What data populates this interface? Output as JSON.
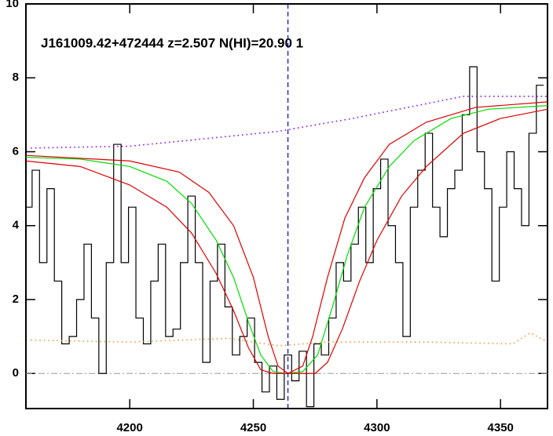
{
  "chart_data": {
    "type": "line",
    "title": "J161009.42+472444 z=2.507 N(HI)=20.90 1",
    "xlim": [
      4158,
      4369
    ],
    "ylim": [
      -0.95,
      10
    ],
    "xticks": [
      4200,
      4250,
      4300,
      4350
    ],
    "yticks": [
      0,
      2,
      4,
      6,
      8,
      10
    ],
    "vline": {
      "x": 4264,
      "color": "#0000cc"
    },
    "hline": {
      "y": 0,
      "color": "#999999"
    },
    "series": [
      {
        "style": "steps",
        "color": "#000000",
        "x": [
          4159,
          4162,
          4165,
          4168,
          4171,
          4174,
          4177,
          4180,
          4183,
          4186,
          4189,
          4192,
          4195,
          4198,
          4201,
          4204,
          4207,
          4210,
          4213,
          4216,
          4219,
          4222,
          4225,
          4228,
          4231,
          4234,
          4237,
          4240,
          4243,
          4246,
          4249,
          4252,
          4255,
          4258,
          4261,
          4264,
          4267,
          4270,
          4273,
          4276,
          4279,
          4282,
          4285,
          4288,
          4291,
          4294,
          4297,
          4300,
          4303,
          4306,
          4309,
          4312,
          4315,
          4318,
          4321,
          4324,
          4327,
          4330,
          4333,
          4336,
          4339,
          4342,
          4345,
          4348,
          4351,
          4354,
          4357,
          4360,
          4363,
          4366
        ],
        "values": [
          4.5,
          5.5,
          3.0,
          5.0,
          2.5,
          0.8,
          1.0,
          2.0,
          3.5,
          1.5,
          0.0,
          3.0,
          6.2,
          3.0,
          4.5,
          1.5,
          0.8,
          2.5,
          3.5,
          1.0,
          1.2,
          3.0,
          4.8,
          3.0,
          0.3,
          2.5,
          3.5,
          1.8,
          0.5,
          1.0,
          1.5,
          0.3,
          -0.5,
          0.2,
          -0.7,
          0.5,
          -0.2,
          0.6,
          -0.9,
          0.8,
          0.5,
          1.5,
          3.0,
          2.5,
          3.5,
          4.5,
          3.0,
          5.0,
          5.8,
          4.0,
          3.0,
          1.0,
          4.5,
          5.5,
          6.5,
          4.5,
          3.7,
          5.0,
          5.5,
          7.0,
          8.3,
          6.0,
          5.0,
          2.5,
          4.5,
          6.0,
          5.0,
          4.0,
          6.5,
          7.8
        ]
      },
      {
        "style": "line",
        "color": "#00dd00",
        "x": [
          4158,
          4180,
          4200,
          4215,
          4225,
          4235,
          4242,
          4248,
          4253,
          4258,
          4263,
          4270,
          4276,
          4282,
          4288,
          4295,
          4305,
          4315,
          4330,
          4345,
          4369
        ],
        "values": [
          5.85,
          5.8,
          5.6,
          5.2,
          4.6,
          3.6,
          2.6,
          1.4,
          0.5,
          0.05,
          0,
          0.05,
          0.5,
          1.8,
          3.2,
          4.5,
          5.6,
          6.3,
          6.9,
          7.15,
          7.25
        ]
      },
      {
        "style": "line",
        "color": "#dd0000",
        "x": [
          4158,
          4200,
          4220,
          4232,
          4242,
          4250,
          4256,
          4260,
          4264,
          4270,
          4274,
          4280,
          4287,
          4295,
          4305,
          4320,
          4340,
          4369
        ],
        "values": [
          5.9,
          5.75,
          5.45,
          4.9,
          4.0,
          2.6,
          1.0,
          0.2,
          0,
          0.2,
          1.0,
          2.6,
          4.2,
          5.3,
          6.2,
          6.8,
          7.2,
          7.35
        ]
      },
      {
        "style": "line",
        "color": "#dd0000",
        "x": [
          4158,
          4180,
          4200,
          4215,
          4225,
          4235,
          4242,
          4248,
          4253,
          4258,
          4275,
          4280,
          4286,
          4293,
          4300,
          4310,
          4320,
          4335,
          4350,
          4369
        ],
        "values": [
          5.75,
          5.6,
          5.1,
          4.5,
          3.8,
          2.7,
          1.7,
          0.7,
          0.1,
          0,
          0,
          0.3,
          1.2,
          2.5,
          3.6,
          4.8,
          5.6,
          6.5,
          6.9,
          7.15
        ]
      },
      {
        "style": "dotted",
        "color": "#8800ff",
        "x": [
          4160,
          4200,
          4230,
          4260,
          4290,
          4320,
          4335,
          4369
        ],
        "values": [
          6.1,
          6.15,
          6.35,
          6.55,
          6.9,
          7.3,
          7.5,
          7.5
        ]
      },
      {
        "style": "dotted",
        "color": "#ee9933",
        "x": [
          4160,
          4200,
          4240,
          4260,
          4280,
          4320,
          4355,
          4362,
          4369
        ],
        "values": [
          0.9,
          0.85,
          0.95,
          0.75,
          0.85,
          0.85,
          0.8,
          1.1,
          0.85
        ]
      }
    ]
  }
}
